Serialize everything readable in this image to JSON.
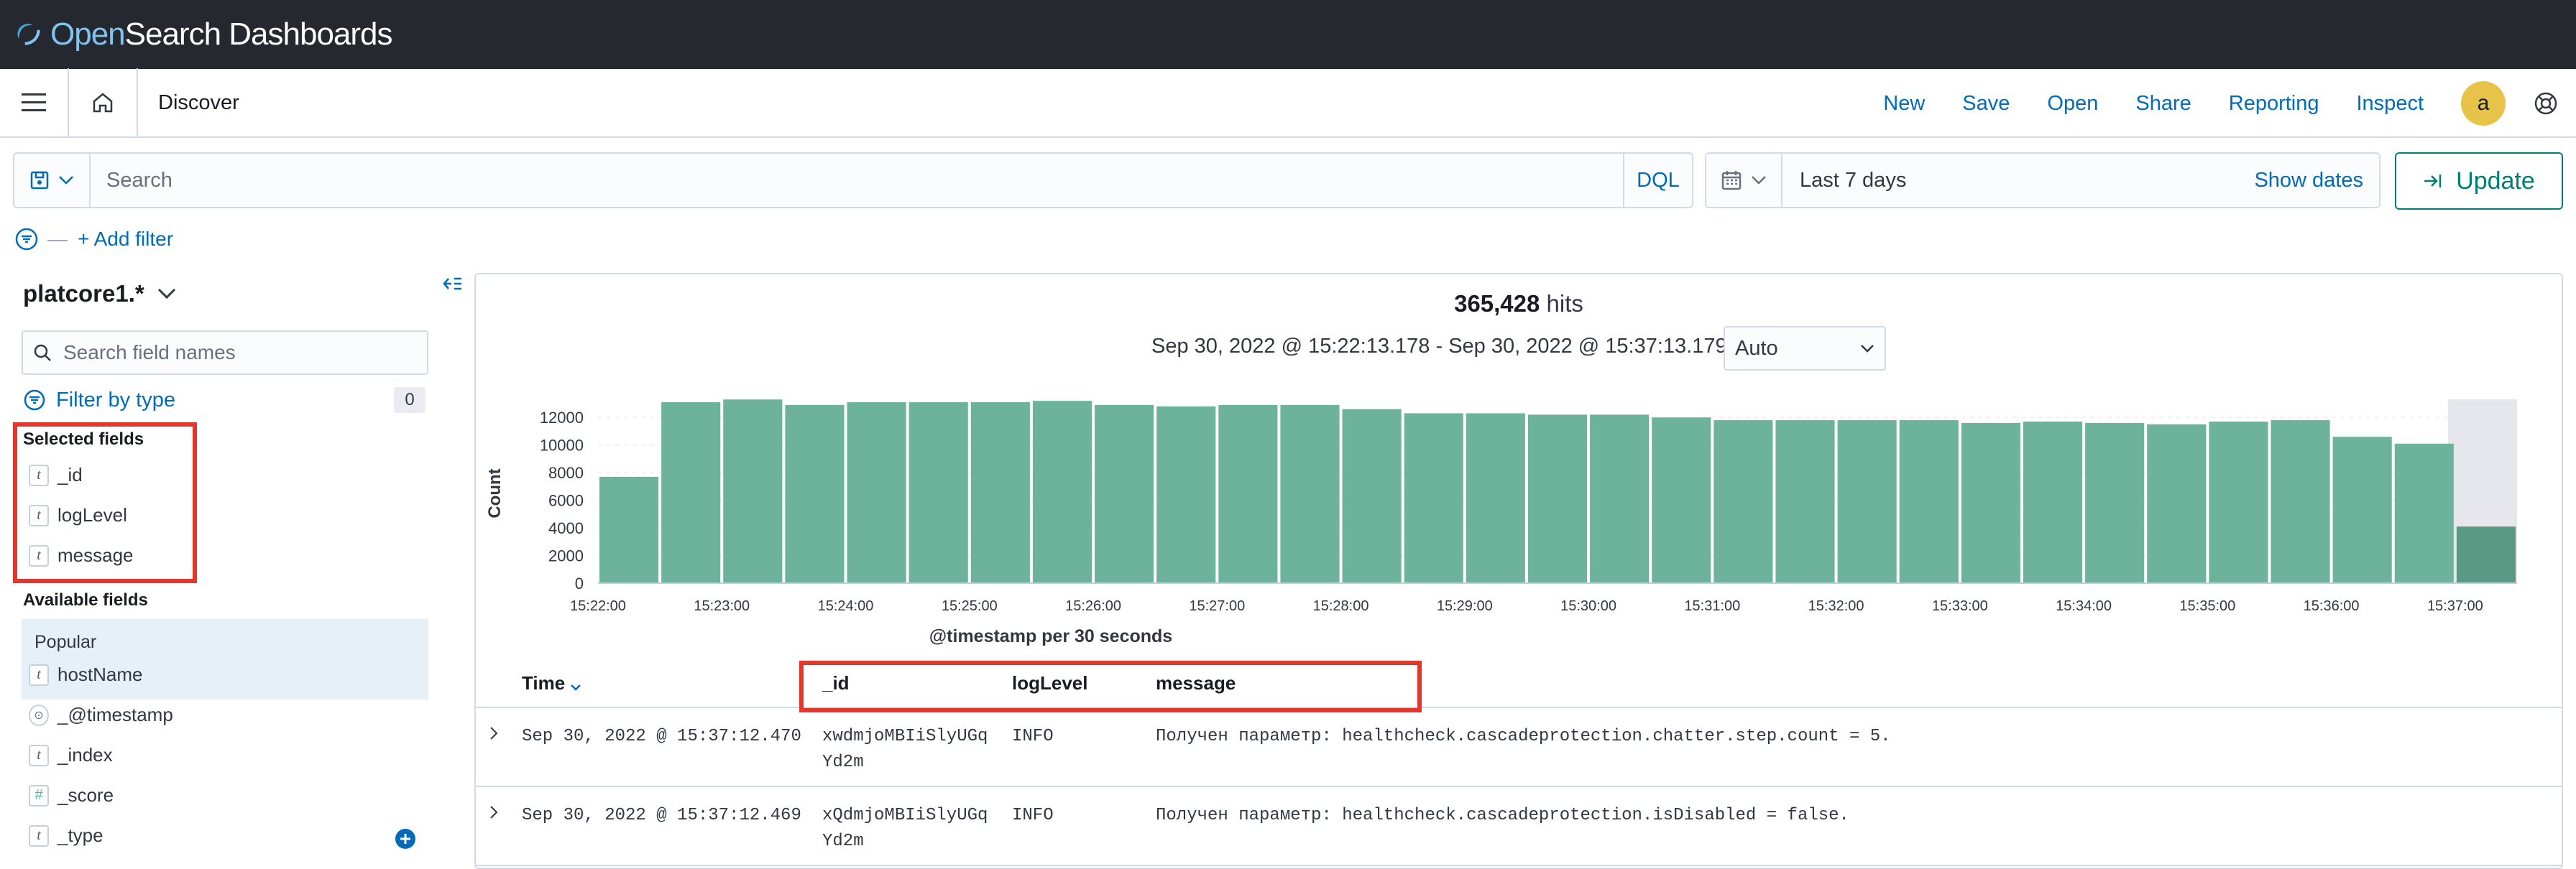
{
  "app": {
    "brand_open": "Open",
    "brand_rest": "Search Dashboards"
  },
  "header": {
    "breadcrumb": "Discover",
    "nav": [
      "New",
      "Save",
      "Open",
      "Share",
      "Reporting",
      "Inspect"
    ],
    "avatar_letter": "a"
  },
  "query": {
    "placeholder": "Search",
    "language": "DQL"
  },
  "time": {
    "range": "Last 7 days",
    "show_dates": "Show dates",
    "update_label": "Update"
  },
  "filters": {
    "add_filter": "+ Add filter"
  },
  "sidebar": {
    "index_pattern": "platcore1.*",
    "search_placeholder": "Search field names",
    "filter_by_type": "Filter by type",
    "filter_count": "0",
    "selected_title": "Selected fields",
    "selected": [
      {
        "type": "t",
        "name": "_id"
      },
      {
        "type": "t",
        "name": "logLevel"
      },
      {
        "type": "t",
        "name": "message"
      }
    ],
    "available_title": "Available fields",
    "popular_title": "Popular",
    "popular": [
      {
        "type": "t",
        "name": "hostName"
      }
    ],
    "available": [
      {
        "type": "date",
        "name": "_@timestamp"
      },
      {
        "type": "t",
        "name": "_index"
      },
      {
        "type": "#",
        "name": "_score"
      },
      {
        "type": "t",
        "name": "_type"
      }
    ]
  },
  "results": {
    "hits_count": "365,428",
    "hits_label": "hits",
    "date_range": "Sep 30, 2022 @ 15:22:13.178 - Sep 30, 2022 @ 15:37:13.179",
    "interval": "Auto",
    "columns": {
      "time": "Time",
      "id": "_id",
      "level": "logLevel",
      "message": "message"
    },
    "rows": [
      {
        "time": "Sep 30, 2022 @ 15:37:12.470",
        "id_line1": "xwdmjoMBIiSlyUGq",
        "id_line2": "Yd2m",
        "level": "INFO",
        "message": "Получен параметр: healthcheck.cascadeprotection.chatter.step.count = 5."
      },
      {
        "time": "Sep 30, 2022 @ 15:37:12.469",
        "id_line1": "xQdmjoMBIiSlyUGq",
        "id_line2": "Yd2m",
        "level": "INFO",
        "message": "Получен параметр: healthcheck.cascadeprotection.isDisabled = false."
      }
    ]
  },
  "colors": {
    "bar": "#6db39b",
    "bar_partial": "#5a9a85",
    "link": "#006bb8",
    "highlight": "#e7352c"
  },
  "chart_data": {
    "type": "bar",
    "title": "",
    "xlabel": "@timestamp per 30 seconds",
    "ylabel": "Count",
    "ylim": [
      0,
      13000
    ],
    "yticks": [
      0,
      2000,
      4000,
      6000,
      8000,
      10000,
      12000
    ],
    "xticks": [
      "15:22:00",
      "15:23:00",
      "15:24:00",
      "15:25:00",
      "15:26:00",
      "15:27:00",
      "15:28:00",
      "15:29:00",
      "15:30:00",
      "15:31:00",
      "15:32:00",
      "15:33:00",
      "15:34:00",
      "15:35:00",
      "15:36:00",
      "15:37:00"
    ],
    "values": [
      7700,
      13100,
      13300,
      12900,
      13100,
      13100,
      13100,
      13200,
      12900,
      12800,
      12900,
      12900,
      12600,
      12300,
      12300,
      12200,
      12200,
      12000,
      11800,
      11800,
      11800,
      11800,
      11600,
      11700,
      11600,
      11500,
      11700,
      11800,
      10600,
      10100,
      4100
    ],
    "partial_last_bucket": true
  }
}
